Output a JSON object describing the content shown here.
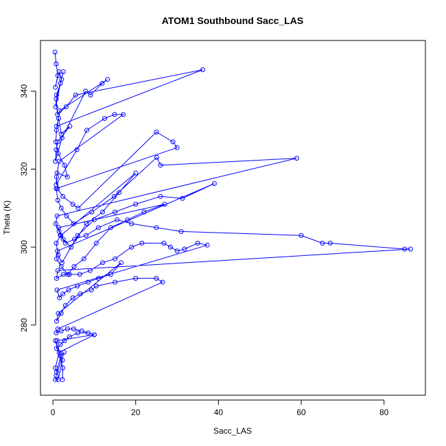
{
  "chart_data": {
    "type": "scatter",
    "title": "ATOM1 Southbound Sacc_LAS",
    "xlabel": "Sacc_LAS",
    "ylabel": "Theta (K)",
    "xlim": [
      -3,
      90
    ],
    "ylim": [
      262,
      353
    ],
    "xticks": [
      0,
      20,
      40,
      60,
      80
    ],
    "yticks": [
      280,
      300,
      320,
      340
    ],
    "grid": false,
    "legend": "none",
    "colors": {
      "series": "#0000ff",
      "axis": "#000000"
    },
    "series": [
      {
        "style": "points-and-lines",
        "x": [
          0.5,
          0.8,
          1.2,
          0.6,
          1.5,
          2.1,
          0.9,
          0.7,
          1.8,
          2.5,
          0.8,
          1.1,
          3.2,
          5.5,
          36.2,
          0.9,
          1.4,
          2.0,
          4.1,
          1.2,
          0.8,
          0.6,
          2.2,
          7.9,
          9.1,
          11.9,
          13.2,
          1.6,
          0.9,
          0.7,
          1.3,
          2.8,
          3.5,
          1.0,
          0.8,
          5.8,
          8.2,
          12.5,
          14.9,
          17.0,
          1.5,
          0.9,
          1.1,
          2.4,
          4.8,
          6.1,
          25.0,
          29.0,
          30.0,
          0.8,
          1.2,
          2.0,
          3.3,
          5.0,
          9.4,
          14.8,
          25.1,
          26.0,
          58.9,
          1.0,
          0.7,
          1.5,
          2.5,
          4.4,
          8.1,
          12.0,
          16.0,
          20.0,
          1.9,
          0.8,
          1.3,
          2.2,
          6.0,
          10.0,
          15.0,
          20.0,
          26.0,
          31.3,
          39.0,
          1.1,
          0.9,
          2.0,
          3.6,
          5.1,
          7.5,
          10.5,
          14.0,
          18.0,
          22.0,
          27.0,
          1.4,
          1.8,
          3.0,
          5.2,
          8.0,
          11.0,
          15.5,
          19.0,
          25.0,
          31.0,
          60.0,
          65.1,
          67.0,
          85.0,
          86.4,
          1.2,
          0.9,
          2.5,
          4.0,
          6.5,
          9.0,
          12.0,
          15.0,
          19.0,
          21.5,
          26.8,
          28.4,
          30.0,
          31.8,
          35.0,
          37.3,
          1.0,
          1.6,
          2.4,
          3.8,
          5.9,
          8.5,
          11.0,
          14.0,
          16.5,
          1.3,
          0.9,
          2.0,
          3.0,
          4.8,
          6.6,
          9.3,
          10.5,
          15.0,
          20.0,
          25.0,
          26.5,
          1.2,
          0.8,
          2.0,
          3.5,
          5.0,
          7.0,
          10.0,
          1.0,
          0.9,
          1.8,
          2.8,
          4.0,
          6.0,
          8.5,
          10.0,
          1.5,
          0.6,
          0.9,
          1.9,
          2.7,
          0.8,
          0.6,
          1.3,
          2.3,
          0.6,
          2.4,
          2.3
        ],
        "y": [
          350.0,
          347.0,
          344.0,
          341.0,
          345.0,
          343.0,
          339.0,
          336.0,
          342.0,
          345.0,
          338.0,
          334.0,
          336.0,
          339.0,
          345.5,
          331.0,
          333.0,
          329.0,
          331.0,
          327.0,
          325.0,
          322.0,
          328.0,
          340.0,
          339.0,
          342.0,
          343.0,
          335.0,
          330.0,
          327.0,
          324.0,
          321.0,
          318.0,
          319.0,
          316.0,
          325.0,
          330.0,
          333.0,
          334.0,
          334.0,
          322.0,
          318.0,
          315.0,
          313.0,
          311.0,
          310.0,
          329.5,
          327.0,
          325.5,
          315.0,
          312.0,
          310.0,
          308.0,
          306.0,
          309.0,
          313.0,
          323.0,
          321.0,
          322.8,
          308.0,
          306.0,
          304.0,
          302.0,
          300.0,
          306.0,
          309.0,
          314.0,
          319.0,
          303.0,
          301.0,
          298.0,
          296.0,
          303.0,
          307.0,
          309.0,
          311.0,
          313.0,
          312.5,
          316.3,
          299.0,
          297.0,
          295.0,
          293.0,
          295.0,
          297.0,
          301.0,
          305.0,
          307.0,
          309.0,
          311.0,
          305.0,
          303.0,
          301.0,
          302.0,
          303.0,
          305.0,
          307.0,
          306.0,
          305.0,
          304.0,
          303.0,
          301.0,
          301.0,
          299.5,
          299.5,
          294.0,
          292.0,
          293.0,
          293.0,
          293.0,
          294.0,
          296.0,
          297.0,
          300.0,
          301.0,
          301.0,
          300.0,
          299.0,
          299.5,
          301.0,
          300.5,
          289.0,
          287.0,
          288.0,
          289.0,
          290.0,
          291.0,
          292.0,
          293.0,
          296.0,
          283.0,
          281.0,
          283.0,
          285.0,
          287.0,
          288.0,
          289.0,
          290.0,
          291.0,
          292.0,
          292.0,
          291.0,
          279.0,
          278.0,
          278.5,
          279.0,
          279.0,
          278.5,
          277.5,
          276.0,
          274.0,
          275.0,
          276.0,
          277.0,
          278.0,
          278.0,
          277.5,
          273.0,
          269.0,
          268.0,
          272.0,
          273.0,
          267.0,
          266.0,
          266.0,
          271.0,
          276.0,
          269.0,
          266.0
        ]
      }
    ]
  }
}
